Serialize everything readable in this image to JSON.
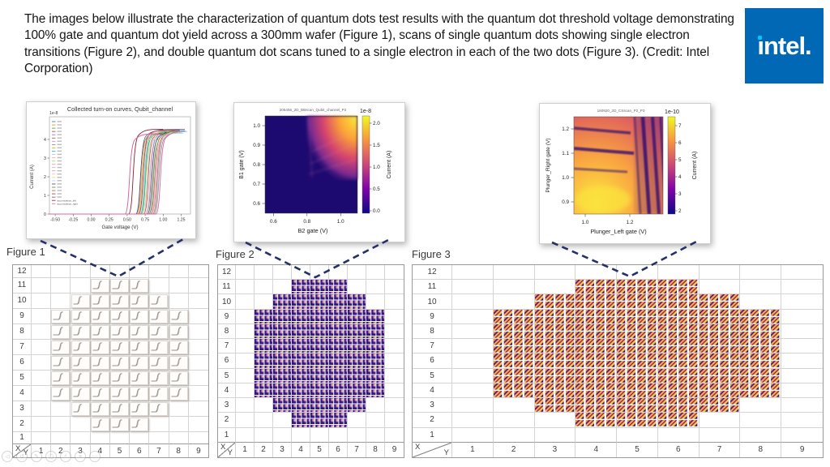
{
  "caption": {
    "text": "The images below illustrate the characterization of quantum dots test results with the quantum dot threshold voltage demonstrating 100% gate and quantum dot yield across a 300mm wafer (Figure 1), scans of single quantum dots showing single electron transitions (Figure 2), and double quantum dot scans tuned to a single electron in each of the two dots (Figure 3). (Credit: Intel Corporation)"
  },
  "logo": {
    "wordmark": "intel.",
    "i_glyph": "ı",
    "rest": "ntel.",
    "bg_color": "#0068b5",
    "i_dot_color": "#00c7fd"
  },
  "insets": {
    "turnon": {
      "title": "Collected turn-on curves, Qubit_channel",
      "scale": "1e-8",
      "ylabel": "Current (A)",
      "xlabel": "Gate voltage (V)",
      "yticks": [
        "4",
        "3",
        "2",
        "1",
        "0"
      ],
      "xticks": [
        "-0.50",
        "-0.25",
        "0.00",
        "0.25",
        "0.50",
        "0.75",
        "1.00",
        "1.25"
      ],
      "legend_tail": [
        "accumulation_left",
        "accumulation_right"
      ]
    },
    "bbscan": {
      "title": "205456_2D_BBscan_Qubit_channel_P2",
      "scale": "1e-8",
      "ylabel": "B1 gate (V)",
      "xlabel": "B2 gate (V)",
      "yticks": [
        "1.0",
        "0.9",
        "0.8",
        "0.7",
        "0.6"
      ],
      "xticks": [
        "0.6",
        "0.8",
        "1.0"
      ],
      "cbar_label": "Current (A)",
      "cbar_ticks": [
        "2.0",
        "1.5",
        "1.0",
        "0.5",
        "0.0"
      ]
    },
    "csscan": {
      "title": "160920_2D_CSscan_P2_P3",
      "scale": "1e-10",
      "ylabel": "Plunger_Right gate (V)",
      "xlabel": "Plunger_Left gate (V)",
      "yticks": [
        "1.2",
        "1.1",
        "1.0",
        "0.9"
      ],
      "xticks": [
        "1.0",
        "1.2"
      ],
      "cbar_label": "Current (A)",
      "cbar_ticks": [
        "7",
        "6",
        "5",
        "4",
        "3",
        "2"
      ]
    }
  },
  "wafermaps": {
    "corner_x": "X",
    "corner_y": "Y",
    "cols": [
      "1",
      "2",
      "3",
      "4",
      "5",
      "6",
      "7",
      "8",
      "9"
    ],
    "rows": [
      "12",
      "11",
      "10",
      "9",
      "8",
      "7",
      "6",
      "5",
      "4",
      "3",
      "2",
      "1"
    ],
    "occupancy": {
      "11": [
        4,
        6
      ],
      "10": [
        3,
        7
      ],
      "9": [
        2,
        8
      ],
      "8": [
        2,
        8
      ],
      "7": [
        2,
        8
      ],
      "6": [
        2,
        8
      ],
      "5": [
        2,
        8
      ],
      "4": [
        2,
        8
      ],
      "3": [
        3,
        7
      ],
      "2": [
        4,
        6
      ]
    },
    "figures": [
      {
        "label": "Figure 1",
        "content": "gray turn-on curve thumbnail per die"
      },
      {
        "label": "Figure 2",
        "content": "dense grid of dark-purple single-dot scan thumbnails per die"
      },
      {
        "label": "Figure 3",
        "content": "grid of orange/purple double quantum dot scan thumbnails per die"
      }
    ]
  },
  "viewer_toolbar": {
    "icons": [
      {
        "name": "prev-icon",
        "glyph": "◁"
      },
      {
        "name": "undo-icon",
        "glyph": "↺"
      },
      {
        "name": "pen-icon",
        "glyph": "✎"
      },
      {
        "name": "eraser-icon",
        "glyph": "▢"
      },
      {
        "name": "zoom-icon",
        "glyph": "⌕"
      },
      {
        "name": "menu-icon",
        "glyph": "≡"
      },
      {
        "name": "more-icon",
        "glyph": "⋯"
      }
    ]
  },
  "chart_data": [
    {
      "id": "figure1-inset",
      "type": "line",
      "title": "Collected turn-on curves, Qubit_channel",
      "xlabel": "Gate voltage (V)",
      "ylabel": "Current (A)",
      "y_scale_factor": "1e-8",
      "xlim": [
        -0.58,
        1.38
      ],
      "ylim": [
        -2e-09,
        4.7e-08
      ],
      "xticks": [
        -0.5,
        -0.25,
        0.0,
        0.25,
        0.5,
        0.75,
        1.0,
        1.25
      ],
      "yticks_1e-8": [
        0,
        1,
        2,
        3,
        4
      ],
      "series_count": 28,
      "series_summary": "~28 overlaid turn-on I-V sweeps: current ~0 A below threshold, sharp rise between ~0.5 V and ~0.95 V gate voltage, saturating near 4.5e-8 A; one pink accumulation-gate curve turns on earliest near 0.5 V",
      "legend_visible_labels": [
        "accumulation_left",
        "accumulation_right"
      ],
      "legend_position": "upper left, ~26 tiny entries"
    },
    {
      "id": "figure2-inset",
      "type": "heatmap",
      "title": "205456_2D_BBscan_Qubit_channel_P2",
      "xlabel": "B2 gate (V)",
      "ylabel": "B1 gate (V)",
      "xticks": [
        0.6,
        0.8,
        1.0
      ],
      "yticks": [
        0.6,
        0.7,
        0.8,
        0.9,
        1.0
      ],
      "x_range": [
        0.55,
        1.1
      ],
      "y_range": [
        0.55,
        1.05
      ],
      "colormap": "plasma",
      "colorbar": {
        "label": "Current (A)",
        "scale_factor": "1e-8",
        "ticks": [
          0.0,
          0.5,
          1.0,
          1.5,
          2.0
        ]
      },
      "pattern": "current ~0 (dark navy) when B1 < ~0.72 V or B2 < ~0.80 V; current rises through magenta/orange to ~2.2e-8 A (yellow) at the high-B1/high-B2 corner"
    },
    {
      "id": "figure3-inset",
      "type": "heatmap",
      "title": "160920_2D_CSscan_P2_P3",
      "xlabel": "Plunger_Left gate (V)",
      "ylabel": "Plunger_Right gate (V)",
      "xticks": [
        1.0,
        1.2
      ],
      "yticks": [
        0.9,
        1.0,
        1.1,
        1.2
      ],
      "x_range": [
        0.95,
        1.35
      ],
      "y_range": [
        0.85,
        1.25
      ],
      "colormap": "plasma",
      "colorbar": {
        "label": "Current (A)",
        "scale_factor": "1e-10",
        "ticks": [
          2,
          3,
          4,
          5,
          6,
          7
        ]
      },
      "pattern": "bright orange/yellow background (~5-7e-10 A) crossed by dark charge-transition lines: near-horizontal lines in the upper-left and near-vertical lines on the right (double-dot stability diagram)"
    },
    {
      "id": "wafer-maps",
      "type": "heatmap",
      "title": "300mm wafer die maps (Figures 1-3)",
      "x_axis": [
        1,
        2,
        3,
        4,
        5,
        6,
        7,
        8,
        9
      ],
      "y_axis": [
        1,
        2,
        3,
        4,
        5,
        6,
        7,
        8,
        9,
        10,
        11,
        12
      ],
      "occupied_dies_per_row": {
        "2": [
          4,
          6
        ],
        "3": [
          3,
          7
        ],
        "4": [
          2,
          8
        ],
        "5": [
          2,
          8
        ],
        "6": [
          2,
          8
        ],
        "7": [
          2,
          8
        ],
        "8": [
          2,
          8
        ],
        "9": [
          2,
          8
        ],
        "10": [
          3,
          7
        ],
        "11": [
          4,
          6
        ]
      },
      "die_count": 58,
      "figure1_content": "one gray turn-on curve thumbnail per die (100% yield)",
      "figure2_content": "dense array of dark-purple single quantum dot scan thumbnails per die",
      "figure3_content": "array of orange/purple double quantum dot scan thumbnails per die"
    }
  ]
}
